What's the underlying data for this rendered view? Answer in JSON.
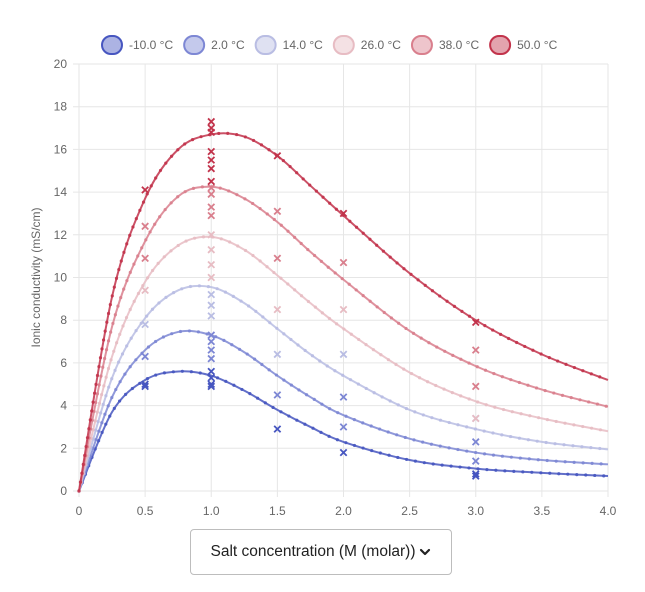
{
  "chart_data": {
    "type": "line",
    "xlim": [
      0,
      4.0
    ],
    "ylim": [
      0,
      20
    ],
    "xticks": [
      "0",
      "0.5",
      "1.0",
      "1.5",
      "2.0",
      "2.5",
      "3.0",
      "3.5",
      "4.0"
    ],
    "yticks": [
      "0",
      "2",
      "4",
      "6",
      "8",
      "10",
      "12",
      "14",
      "16",
      "18",
      "20"
    ],
    "ylabel": "Ionic conductivity (mS/cm)",
    "xlabel": "",
    "grid": true,
    "legend_position": "top",
    "series": [
      {
        "name": "-10.0 °C",
        "color": "#4756c0",
        "fit_peak": {
          "x": 0.8,
          "y": 5.6
        },
        "fit": [
          [
            0,
            0
          ],
          [
            0.25,
            3.7
          ],
          [
            0.5,
            5.2
          ],
          [
            0.75,
            5.6
          ],
          [
            1.0,
            5.4
          ],
          [
            1.25,
            4.7
          ],
          [
            1.5,
            3.8
          ],
          [
            1.75,
            3.0
          ],
          [
            2.0,
            2.3
          ],
          [
            2.5,
            1.45
          ],
          [
            3.0,
            1.05
          ],
          [
            3.5,
            0.85
          ],
          [
            4.0,
            0.7
          ]
        ],
        "measured": [
          [
            0.5,
            4.9
          ],
          [
            0.5,
            5.0
          ],
          [
            1.0,
            4.9
          ],
          [
            1.0,
            5.0
          ],
          [
            1.0,
            5.3
          ],
          [
            1.0,
            5.6
          ],
          [
            1.5,
            2.9
          ],
          [
            2.0,
            1.8
          ],
          [
            3.0,
            0.7
          ],
          [
            3.0,
            0.8
          ]
        ]
      },
      {
        "name": "2.0 °C",
        "color": "#7d87d4",
        "fit_peak": {
          "x": 0.85,
          "y": 7.5
        },
        "fit": [
          [
            0,
            0
          ],
          [
            0.25,
            4.4
          ],
          [
            0.5,
            6.6
          ],
          [
            0.75,
            7.45
          ],
          [
            1.0,
            7.3
          ],
          [
            1.25,
            6.5
          ],
          [
            1.5,
            5.4
          ],
          [
            1.75,
            4.4
          ],
          [
            2.0,
            3.55
          ],
          [
            2.5,
            2.45
          ],
          [
            3.0,
            1.8
          ],
          [
            3.5,
            1.45
          ],
          [
            4.0,
            1.25
          ]
        ],
        "measured": [
          [
            0.5,
            6.3
          ],
          [
            1.0,
            6.2
          ],
          [
            1.0,
            6.6
          ],
          [
            1.0,
            7.0
          ],
          [
            1.0,
            7.3
          ],
          [
            1.5,
            4.5
          ],
          [
            2.0,
            3.0
          ],
          [
            2.0,
            4.4
          ],
          [
            3.0,
            1.4
          ],
          [
            3.0,
            2.3
          ]
        ]
      },
      {
        "name": "14.0 °C",
        "color": "#b9bde3",
        "fit_peak": {
          "x": 0.95,
          "y": 9.6
        },
        "fit": [
          [
            0,
            0
          ],
          [
            0.25,
            5.3
          ],
          [
            0.5,
            8.1
          ],
          [
            0.75,
            9.4
          ],
          [
            1.0,
            9.55
          ],
          [
            1.25,
            8.8
          ],
          [
            1.5,
            7.6
          ],
          [
            1.75,
            6.4
          ],
          [
            2.0,
            5.4
          ],
          [
            2.5,
            3.8
          ],
          [
            3.0,
            2.9
          ],
          [
            3.5,
            2.3
          ],
          [
            4.0,
            1.95
          ]
        ],
        "measured": [
          [
            0.5,
            7.8
          ],
          [
            1.0,
            8.2
          ],
          [
            1.0,
            8.7
          ],
          [
            1.0,
            9.2
          ],
          [
            1.5,
            6.4
          ],
          [
            2.0,
            6.4
          ],
          [
            3.0,
            3.4
          ]
        ]
      },
      {
        "name": "26.0 °C",
        "color": "#e7bcc3",
        "fit_peak": {
          "x": 1.0,
          "y": 11.9
        },
        "fit": [
          [
            0,
            0
          ],
          [
            0.25,
            6.3
          ],
          [
            0.5,
            9.8
          ],
          [
            0.75,
            11.5
          ],
          [
            1.0,
            11.9
          ],
          [
            1.25,
            11.3
          ],
          [
            1.5,
            10.1
          ],
          [
            1.75,
            8.8
          ],
          [
            2.0,
            7.6
          ],
          [
            2.5,
            5.55
          ],
          [
            3.0,
            4.2
          ],
          [
            3.5,
            3.4
          ],
          [
            4.0,
            2.8
          ]
        ],
        "measured": [
          [
            0.5,
            9.4
          ],
          [
            1.0,
            10.0
          ],
          [
            1.0,
            10.6
          ],
          [
            1.0,
            11.3
          ],
          [
            1.0,
            12.0
          ],
          [
            1.5,
            8.5
          ],
          [
            2.0,
            8.5
          ],
          [
            3.0,
            3.4
          ]
        ]
      },
      {
        "name": "38.0 °C",
        "color": "#d97f8d",
        "fit_peak": {
          "x": 1.0,
          "y": 14.2
        },
        "fit": [
          [
            0,
            0
          ],
          [
            0.25,
            7.7
          ],
          [
            0.5,
            11.7
          ],
          [
            0.75,
            13.8
          ],
          [
            1.0,
            14.25
          ],
          [
            1.25,
            13.7
          ],
          [
            1.5,
            12.6
          ],
          [
            1.75,
            11.2
          ],
          [
            2.0,
            9.9
          ],
          [
            2.5,
            7.5
          ],
          [
            3.0,
            5.85
          ],
          [
            3.5,
            4.75
          ],
          [
            4.0,
            3.95
          ]
        ],
        "measured": [
          [
            0.5,
            10.9
          ],
          [
            0.5,
            12.4
          ],
          [
            1.0,
            12.9
          ],
          [
            1.0,
            13.3
          ],
          [
            1.0,
            13.9
          ],
          [
            1.0,
            14.2
          ],
          [
            1.5,
            10.9
          ],
          [
            1.5,
            13.1
          ],
          [
            2.0,
            10.7
          ],
          [
            3.0,
            4.9
          ],
          [
            3.0,
            6.6
          ]
        ]
      },
      {
        "name": "50.0 °C",
        "color": "#c2334b",
        "fit_peak": {
          "x": 1.15,
          "y": 16.8
        },
        "fit": [
          [
            0,
            0
          ],
          [
            0.25,
            9.1
          ],
          [
            0.5,
            13.7
          ],
          [
            0.75,
            16.0
          ],
          [
            1.0,
            16.7
          ],
          [
            1.25,
            16.6
          ],
          [
            1.5,
            15.7
          ],
          [
            1.75,
            14.3
          ],
          [
            2.0,
            12.9
          ],
          [
            2.5,
            10.2
          ],
          [
            3.0,
            8.0
          ],
          [
            3.5,
            6.4
          ],
          [
            4.0,
            5.2
          ]
        ],
        "measured": [
          [
            0.5,
            14.1
          ],
          [
            1.0,
            14.5
          ],
          [
            1.0,
            15.1
          ],
          [
            1.0,
            15.5
          ],
          [
            1.0,
            15.9
          ],
          [
            1.0,
            16.8
          ],
          [
            1.0,
            17.0
          ],
          [
            1.0,
            17.3
          ],
          [
            1.5,
            15.7
          ],
          [
            2.0,
            13.0
          ],
          [
            3.0,
            7.9
          ]
        ]
      }
    ]
  },
  "dropdown": {
    "selected": "Salt concentration (M (molar))"
  }
}
